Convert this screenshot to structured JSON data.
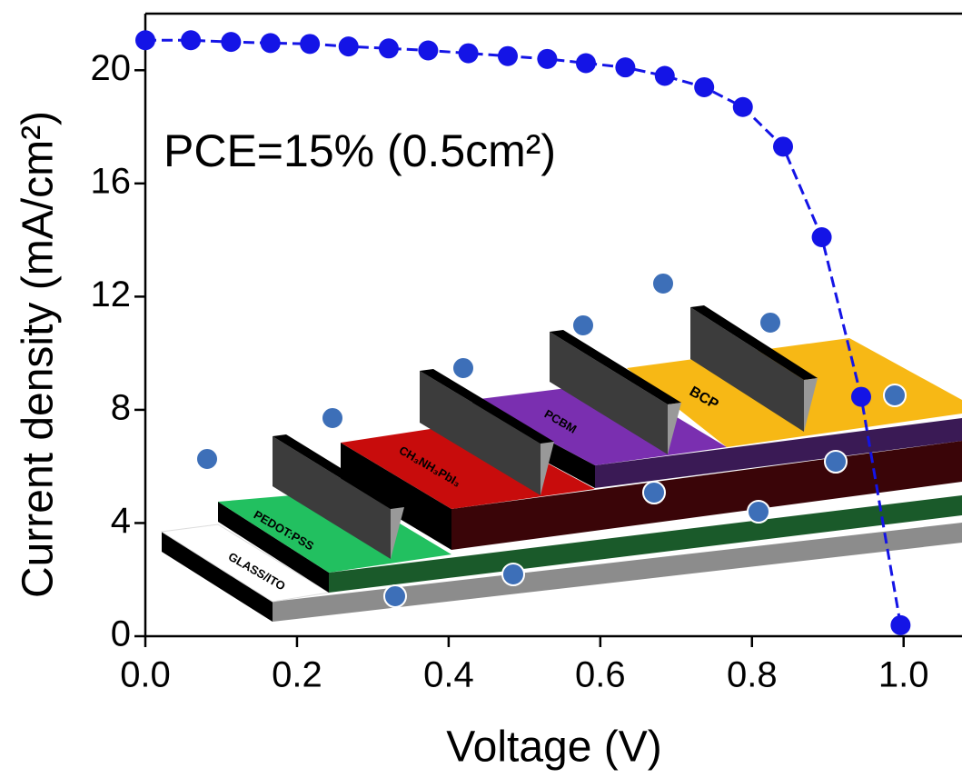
{
  "chart_data": {
    "type": "line",
    "x_label": "Voltage (V)",
    "y_label": "Current density (mA/cm²)",
    "annotation": "PCE=15% (0.5cm²)",
    "inset_labels": [
      "GLASS/ITO",
      "PEDOT:PSS",
      "CH₃NH₃PbI₃",
      "PCBM",
      "BCP"
    ],
    "x": [
      0.0,
      0.06,
      0.113,
      0.165,
      0.217,
      0.268,
      0.321,
      0.373,
      0.426,
      0.478,
      0.53,
      0.581,
      0.633,
      0.685,
      0.737,
      0.788,
      0.841,
      0.892,
      0.944,
      0.996
    ],
    "series": [
      {
        "color": "#1414e6",
        "values": [
          21.06,
          21.06,
          21.0,
          20.96,
          20.93,
          20.84,
          20.77,
          20.7,
          20.6,
          20.5,
          20.4,
          20.25,
          20.1,
          19.8,
          19.4,
          18.7,
          17.3,
          14.1,
          8.46,
          0.39
        ]
      }
    ],
    "xlim": [
      0,
      1.077
    ],
    "ylim": [
      0,
      22
    ],
    "xticks": [
      {
        "value": 0,
        "label": "0.0"
      },
      {
        "value": 0.2,
        "label": "0.2"
      },
      {
        "value": 0.4,
        "label": "0.4"
      },
      {
        "value": 0.6,
        "label": "0.6"
      },
      {
        "value": 0.8,
        "label": "0.8"
      },
      {
        "value": 1.0,
        "label": "1.0"
      }
    ],
    "yticks": [
      0,
      4,
      8,
      12,
      16,
      20
    ]
  }
}
